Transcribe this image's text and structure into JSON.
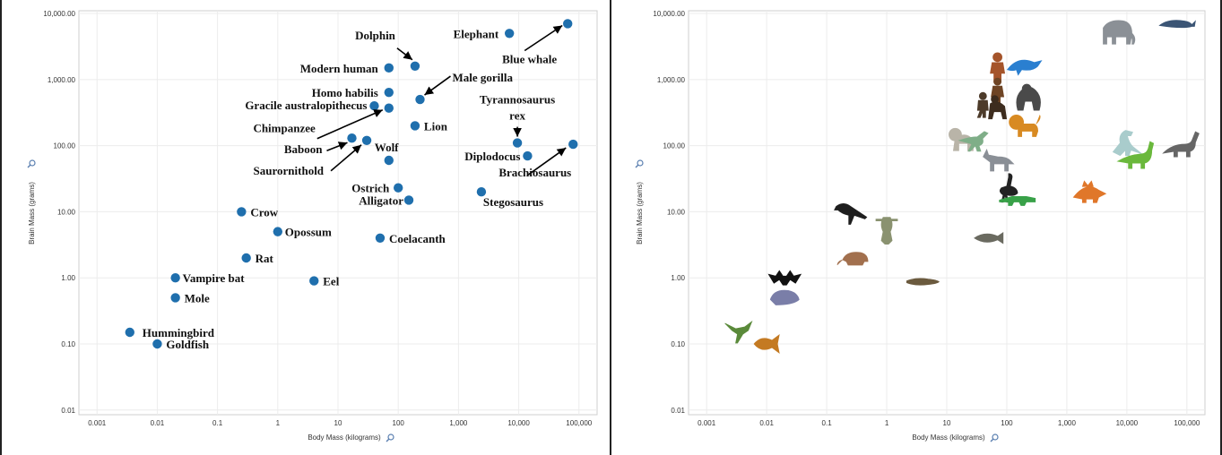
{
  "chart_data": [
    {
      "type": "scatter",
      "title": "",
      "xlabel": "Body Mass (kilograms)",
      "ylabel": "Brain Mass (grams)",
      "x_scale": "log",
      "y_scale": "log",
      "xlim": [
        0.0005,
        200000
      ],
      "ylim": [
        0.0085,
        11000
      ],
      "x_ticks": [
        "0.001",
        "0.01",
        "0.1",
        "1",
        "10",
        "100",
        "1,000",
        "10,000",
        "100,000"
      ],
      "y_ticks": [
        "10,000.00",
        "1,000.00",
        "100.00",
        "10.00",
        "1.00",
        "0.10",
        "0.01"
      ],
      "grid": true,
      "marker_color": "#1f6fad",
      "label_markers": true,
      "points": [
        {
          "name": "Blue whale",
          "x": 65000,
          "y": 7000
        },
        {
          "name": "Elephant",
          "x": 7000,
          "y": 5000
        },
        {
          "name": "Dolphin",
          "x": 190,
          "y": 1600
        },
        {
          "name": "Modern human",
          "x": 70,
          "y": 1500
        },
        {
          "name": "Male gorilla",
          "x": 230,
          "y": 500
        },
        {
          "name": "Homo habilis",
          "x": 70,
          "y": 640
        },
        {
          "name": "Gracile australopithecus",
          "x": 40,
          "y": 400
        },
        {
          "name": "Chimpanzee",
          "x": 70,
          "y": 370
        },
        {
          "name": "Lion",
          "x": 190,
          "y": 200
        },
        {
          "name": "Tyrannosaurus rex",
          "x": 9500,
          "y": 110
        },
        {
          "name": "Brachiosaurus",
          "x": 80000,
          "y": 105
        },
        {
          "name": "Baboon",
          "x": 17,
          "y": 130
        },
        {
          "name": "Saurornithold",
          "x": 30,
          "y": 120
        },
        {
          "name": "Wolf",
          "x": 70,
          "y": 60
        },
        {
          "name": "Diplodocus",
          "x": 14000,
          "y": 70
        },
        {
          "name": "Ostrich",
          "x": 100,
          "y": 23
        },
        {
          "name": "Alligator",
          "x": 150,
          "y": 15
        },
        {
          "name": "Stegosaurus",
          "x": 2400,
          "y": 20
        },
        {
          "name": "Crow",
          "x": 0.25,
          "y": 10
        },
        {
          "name": "Opossum",
          "x": 1,
          "y": 5
        },
        {
          "name": "Coelacanth",
          "x": 50,
          "y": 4
        },
        {
          "name": "Rat",
          "x": 0.3,
          "y": 2
        },
        {
          "name": "Vampire bat",
          "x": 0.02,
          "y": 1
        },
        {
          "name": "Eel",
          "x": 4,
          "y": 0.9
        },
        {
          "name": "Mole",
          "x": 0.02,
          "y": 0.5
        },
        {
          "name": "Hummingbird",
          "x": 0.0035,
          "y": 0.15
        },
        {
          "name": "Goldfish",
          "x": 0.01,
          "y": 0.1
        }
      ]
    },
    {
      "type": "scatter",
      "title": "",
      "xlabel": "Body Mass (kilograms)",
      "ylabel": "Brain Mass (grams)",
      "x_scale": "log",
      "y_scale": "log",
      "xlim": [
        0.0005,
        200000
      ],
      "ylim": [
        0.0085,
        11000
      ],
      "x_ticks": [
        "0.001",
        "0.01",
        "0.1",
        "1",
        "10",
        "100",
        "1,000",
        "10,000",
        "100,000"
      ],
      "y_ticks": [
        "10,000.00",
        "1,000.00",
        "100.00",
        "10.00",
        "1.00",
        "0.10",
        "0.01"
      ],
      "grid": true,
      "marker_style": "animal-pictograms",
      "label_markers": false,
      "points": [
        {
          "icon": "blue-whale",
          "x": 65000,
          "y": 7000,
          "color": "#3b5575"
        },
        {
          "icon": "elephant",
          "x": 7000,
          "y": 5000,
          "color": "#8b9096"
        },
        {
          "icon": "dolphin",
          "x": 190,
          "y": 1600,
          "color": "#2a7fd0"
        },
        {
          "icon": "modern-human",
          "x": 70,
          "y": 1500,
          "color": "#a5542a"
        },
        {
          "icon": "male-gorilla",
          "x": 230,
          "y": 500,
          "color": "#4a4a4a"
        },
        {
          "icon": "homo-habilis",
          "x": 70,
          "y": 640,
          "color": "#6e4424"
        },
        {
          "icon": "gracile-australopithecus",
          "x": 40,
          "y": 400,
          "color": "#4d3b2a"
        },
        {
          "icon": "chimpanzee",
          "x": 70,
          "y": 370,
          "color": "#3d2c1e"
        },
        {
          "icon": "lion",
          "x": 190,
          "y": 200,
          "color": "#d88a22"
        },
        {
          "icon": "tyrannosaurus-rex",
          "x": 9500,
          "y": 110,
          "color": "#a9cccc"
        },
        {
          "icon": "brachiosaurus",
          "x": 80000,
          "y": 105,
          "color": "#666666"
        },
        {
          "icon": "baboon",
          "x": 17,
          "y": 130,
          "color": "#b9b4a8"
        },
        {
          "icon": "saurornithold",
          "x": 30,
          "y": 120,
          "color": "#7fae88"
        },
        {
          "icon": "wolf",
          "x": 70,
          "y": 60,
          "color": "#8a8f96"
        },
        {
          "icon": "diplodocus",
          "x": 14000,
          "y": 70,
          "color": "#6ab83c"
        },
        {
          "icon": "ostrich",
          "x": 100,
          "y": 23,
          "color": "#222222"
        },
        {
          "icon": "alligator",
          "x": 150,
          "y": 15,
          "color": "#38a148"
        },
        {
          "icon": "stegosaurus",
          "x": 2400,
          "y": 20,
          "color": "#e0772a"
        },
        {
          "icon": "crow",
          "x": 0.25,
          "y": 10,
          "color": "#1e1e1e"
        },
        {
          "icon": "opossum",
          "x": 1,
          "y": 5,
          "color": "#8a9270"
        },
        {
          "icon": "coelacanth",
          "x": 50,
          "y": 4,
          "color": "#6a6a60"
        },
        {
          "icon": "rat",
          "x": 0.3,
          "y": 2,
          "color": "#a2704e"
        },
        {
          "icon": "vampire-bat",
          "x": 0.02,
          "y": 1,
          "color": "#111111"
        },
        {
          "icon": "eel",
          "x": 4,
          "y": 0.9,
          "color": "#6b5a3e"
        },
        {
          "icon": "mole",
          "x": 0.02,
          "y": 0.5,
          "color": "#7a7ea8"
        },
        {
          "icon": "hummingbird",
          "x": 0.0035,
          "y": 0.15,
          "color": "#5a8a3a"
        },
        {
          "icon": "goldfish",
          "x": 0.01,
          "y": 0.1,
          "color": "#c47a22"
        }
      ]
    }
  ]
}
